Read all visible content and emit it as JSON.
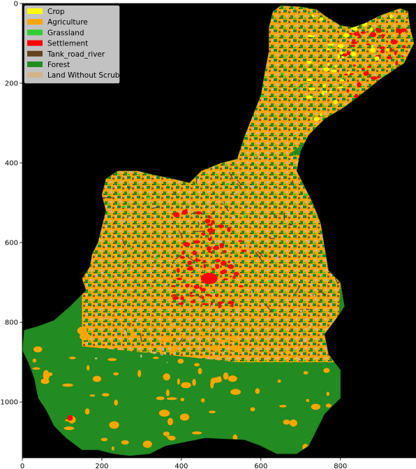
{
  "map": {
    "background_color": "#000000",
    "x_axis": {
      "ticks": [
        0,
        200,
        400,
        600,
        800
      ],
      "range": [
        0,
        990
      ]
    },
    "y_axis": {
      "ticks": [
        0,
        200,
        400,
        600,
        800,
        1000
      ],
      "range": [
        1140,
        0
      ],
      "inverted": true
    },
    "legend": {
      "placement": "upper-left",
      "items": [
        {
          "label": "Crop",
          "color": "#ffff00"
        },
        {
          "label": "Agriculture",
          "color": "#ffa500"
        },
        {
          "label": "Grassland",
          "color": "#32cd32"
        },
        {
          "label": "Settlement",
          "color": "#ff0000"
        },
        {
          "label": "Tank_road_river",
          "color": "#654321"
        },
        {
          "label": "Forest",
          "color": "#228b22"
        },
        {
          "label": "Land Without Scrub",
          "color": "#d2b48c"
        }
      ]
    },
    "regions": [
      {
        "class": "Settlement",
        "location": "north-east arm",
        "x": [
          810,
          960
        ],
        "y": [
          60,
          280
        ]
      },
      {
        "class": "Crop",
        "location": "north-east arm",
        "x": [
          720,
          930
        ],
        "y": [
          30,
          300
        ]
      },
      {
        "class": "Settlement",
        "location": "centre",
        "x": [
          380,
          560
        ],
        "y": [
          520,
          760
        ]
      },
      {
        "class": "Forest",
        "location": "south",
        "x": [
          10,
          800
        ],
        "y": [
          800,
          1140
        ]
      },
      {
        "class": "Agriculture",
        "location": "central plateau",
        "x": [
          160,
          760
        ],
        "y": [
          380,
          900
        ]
      }
    ]
  }
}
